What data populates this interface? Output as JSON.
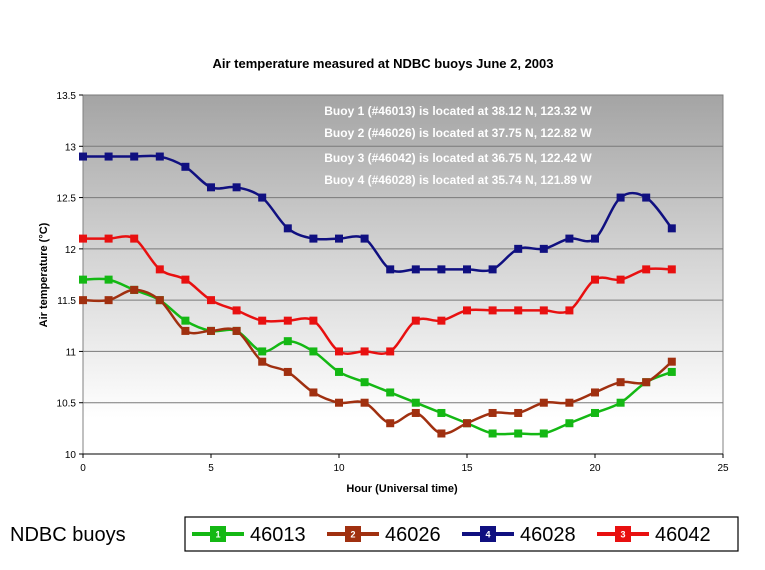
{
  "chart_data": {
    "type": "line",
    "title": "Air temperature measured at NDBC buoys June 2, 2003",
    "xlabel": "Hour (Universal time)",
    "ylabel": "Air temperature (°C)",
    "xlim": [
      0,
      25
    ],
    "ylim": [
      10,
      13.5
    ],
    "xticks": [
      0,
      5,
      10,
      15,
      20,
      25
    ],
    "yticks": [
      10,
      10.5,
      11,
      11.5,
      12,
      12.5,
      13,
      13.5
    ],
    "grid": "horizontal",
    "x": [
      0,
      1,
      2,
      3,
      4,
      5,
      6,
      7,
      8,
      9,
      10,
      11,
      12,
      13,
      14,
      15,
      16,
      17,
      18,
      19,
      20,
      21,
      22,
      23
    ],
    "series": [
      {
        "name": "46013",
        "marker_label": "1",
        "color": "#14b814",
        "values": [
          11.7,
          11.7,
          11.6,
          11.5,
          11.3,
          11.2,
          11.2,
          11.0,
          11.1,
          11.0,
          10.8,
          10.7,
          10.6,
          10.5,
          10.4,
          10.3,
          10.2,
          10.2,
          10.2,
          10.3,
          10.4,
          10.5,
          10.7,
          10.8
        ]
      },
      {
        "name": "46026",
        "marker_label": "2",
        "color": "#a03010",
        "values": [
          11.5,
          11.5,
          11.6,
          11.5,
          11.2,
          11.2,
          11.2,
          10.9,
          10.8,
          10.6,
          10.5,
          10.5,
          10.3,
          10.4,
          10.2,
          10.3,
          10.4,
          10.4,
          10.5,
          10.5,
          10.6,
          10.7,
          10.7,
          10.9
        ]
      },
      {
        "name": "46028",
        "marker_label": "4",
        "color": "#101080",
        "values": [
          12.9,
          12.9,
          12.9,
          12.9,
          12.8,
          12.6,
          12.6,
          12.5,
          12.2,
          12.1,
          12.1,
          12.1,
          11.8,
          11.8,
          11.8,
          11.8,
          11.8,
          12.0,
          12.0,
          12.1,
          12.1,
          12.5,
          12.5,
          12.2
        ]
      },
      {
        "name": "46042",
        "marker_label": "3",
        "color": "#e81010",
        "values": [
          12.1,
          12.1,
          12.1,
          11.8,
          11.7,
          11.5,
          11.4,
          11.3,
          11.3,
          11.3,
          11.0,
          11.0,
          11.0,
          11.3,
          11.3,
          11.4,
          11.4,
          11.4,
          11.4,
          11.4,
          11.7,
          11.7,
          11.8,
          11.8
        ]
      }
    ],
    "annotations": [
      "Buoy 1 (#46013) is located at 38.12 N, 123.32 W",
      "Buoy 2 (#46026) is located at 37.75 N, 122.82 W",
      "Buoy 3 (#46042) is located at 36.75 N, 122.42 W",
      "Buoy 4 (#46028) is located at 35.74 N, 121.89 W"
    ],
    "legend": {
      "title": "NDBC buoys",
      "placement": "bottom",
      "order": [
        "46013",
        "46026",
        "46028",
        "46042"
      ]
    }
  }
}
